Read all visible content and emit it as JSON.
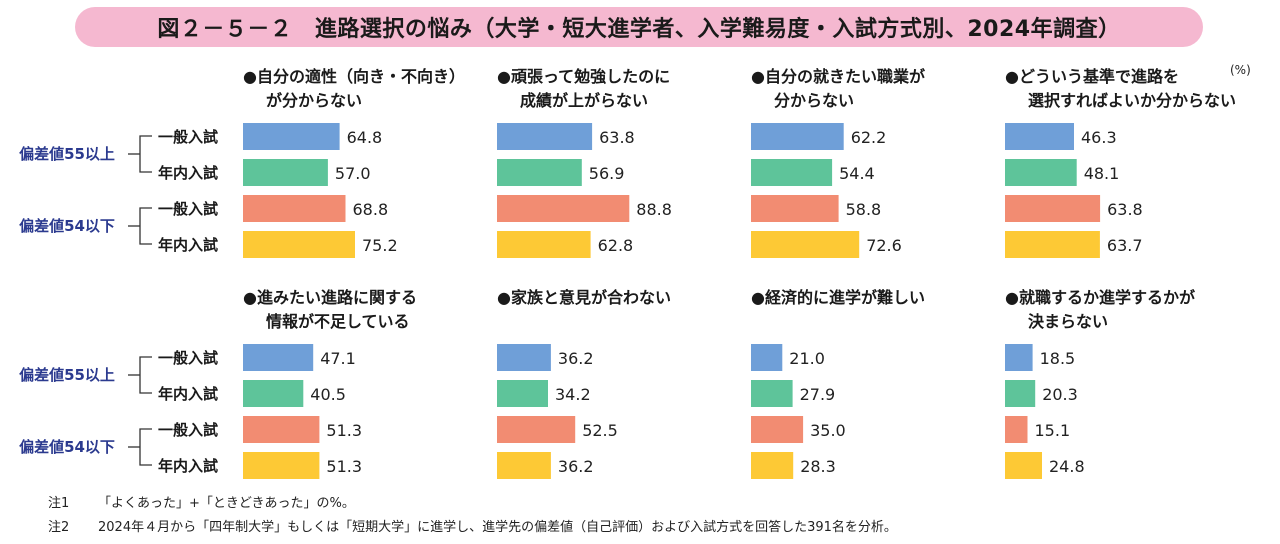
{
  "title": "図２－５－２　進路選択の悩み（大学・短大進学者、入学難易度・入試方式別、2024年調査）",
  "unit_label": "(%)",
  "row_groups": [
    {
      "label": "偏差値55以上",
      "types": [
        "一般入試",
        "年内入試"
      ]
    },
    {
      "label": "偏差値54以下",
      "types": [
        "一般入試",
        "年内入試"
      ]
    }
  ],
  "colors": {
    "title_bg": "#f5b8d0",
    "group_label": "#2b3a8f",
    "bars": [
      "#6f9fd8",
      "#5ec49a",
      "#f28c72",
      "#fdc935"
    ]
  },
  "chart_data": [
    {
      "type": "bar",
      "orientation": "horizontal",
      "title_lines": [
        "●自分の適性（向き・不向き）",
        "が分からない"
      ],
      "categories": [
        "偏差値55以上 一般入試",
        "偏差値55以上 年内入試",
        "偏差値54以下 一般入試",
        "偏差値54以下 年内入試"
      ],
      "values": [
        64.8,
        57.0,
        68.8,
        75.2
      ],
      "value_labels": [
        "64.8",
        "57.0",
        "68.8",
        "75.2"
      ],
      "xlim": [
        0,
        100
      ]
    },
    {
      "type": "bar",
      "orientation": "horizontal",
      "title_lines": [
        "●頑張って勉強したのに",
        "成績が上がらない"
      ],
      "categories": [
        "偏差値55以上 一般入試",
        "偏差値55以上 年内入試",
        "偏差値54以下 一般入試",
        "偏差値54以下 年内入試"
      ],
      "values": [
        63.8,
        56.9,
        88.8,
        62.8
      ],
      "value_labels": [
        "63.8",
        "56.9",
        "88.8",
        "62.8"
      ],
      "xlim": [
        0,
        100
      ]
    },
    {
      "type": "bar",
      "orientation": "horizontal",
      "title_lines": [
        "●自分の就きたい職業が",
        "分からない"
      ],
      "categories": [
        "偏差値55以上 一般入試",
        "偏差値55以上 年内入試",
        "偏差値54以下 一般入試",
        "偏差値54以下 年内入試"
      ],
      "values": [
        62.2,
        54.4,
        58.8,
        72.6
      ],
      "value_labels": [
        "62.2",
        "54.4",
        "58.8",
        "72.6"
      ],
      "xlim": [
        0,
        100
      ]
    },
    {
      "type": "bar",
      "orientation": "horizontal",
      "title_lines": [
        "●どういう基準で進路を",
        "選択すればよいか分からない"
      ],
      "categories": [
        "偏差値55以上 一般入試",
        "偏差値55以上 年内入試",
        "偏差値54以下 一般入試",
        "偏差値54以下 年内入試"
      ],
      "values": [
        46.3,
        48.1,
        63.8,
        63.7
      ],
      "value_labels": [
        "46.3",
        "48.1",
        "63.8",
        "63.7"
      ],
      "xlim": [
        0,
        100
      ]
    },
    {
      "type": "bar",
      "orientation": "horizontal",
      "title_lines": [
        "●進みたい進路に関する",
        "情報が不足している"
      ],
      "categories": [
        "偏差値55以上 一般入試",
        "偏差値55以上 年内入試",
        "偏差値54以下 一般入試",
        "偏差値54以下 年内入試"
      ],
      "values": [
        47.1,
        40.5,
        51.3,
        51.3
      ],
      "value_labels": [
        "47.1",
        "40.5",
        "51.3",
        "51.3"
      ],
      "xlim": [
        0,
        100
      ]
    },
    {
      "type": "bar",
      "orientation": "horizontal",
      "title_lines": [
        "●家族と意見が合わない"
      ],
      "categories": [
        "偏差値55以上 一般入試",
        "偏差値55以上 年内入試",
        "偏差値54以下 一般入試",
        "偏差値54以下 年内入試"
      ],
      "values": [
        36.2,
        34.2,
        52.5,
        36.2
      ],
      "value_labels": [
        "36.2",
        "34.2",
        "52.5",
        "36.2"
      ],
      "xlim": [
        0,
        100
      ]
    },
    {
      "type": "bar",
      "orientation": "horizontal",
      "title_lines": [
        "●経済的に進学が難しい"
      ],
      "categories": [
        "偏差値55以上 一般入試",
        "偏差値55以上 年内入試",
        "偏差値54以下 一般入試",
        "偏差値54以下 年内入試"
      ],
      "values": [
        21.0,
        27.9,
        35.0,
        28.3
      ],
      "value_labels": [
        "21.0",
        "27.9",
        "35.0",
        "28.3"
      ],
      "xlim": [
        0,
        100
      ]
    },
    {
      "type": "bar",
      "orientation": "horizontal",
      "title_lines": [
        "●就職するか進学するかが",
        "決まらない"
      ],
      "categories": [
        "偏差値55以上 一般入試",
        "偏差値55以上 年内入試",
        "偏差値54以下 一般入試",
        "偏差値54以下 年内入試"
      ],
      "values": [
        18.5,
        20.3,
        15.1,
        24.8
      ],
      "value_labels": [
        "18.5",
        "20.3",
        "15.1",
        "24.8"
      ],
      "xlim": [
        0,
        100
      ]
    }
  ],
  "notes": [
    {
      "num": "注1",
      "text": "「よくあった」+「ときどきあった」の%。"
    },
    {
      "num": "注2",
      "text": "2024年４月から「四年制大学」もしくは「短期大学」に進学し、進学先の偏差値（自己評価）および入試方式を回答した391名を分析。"
    }
  ]
}
